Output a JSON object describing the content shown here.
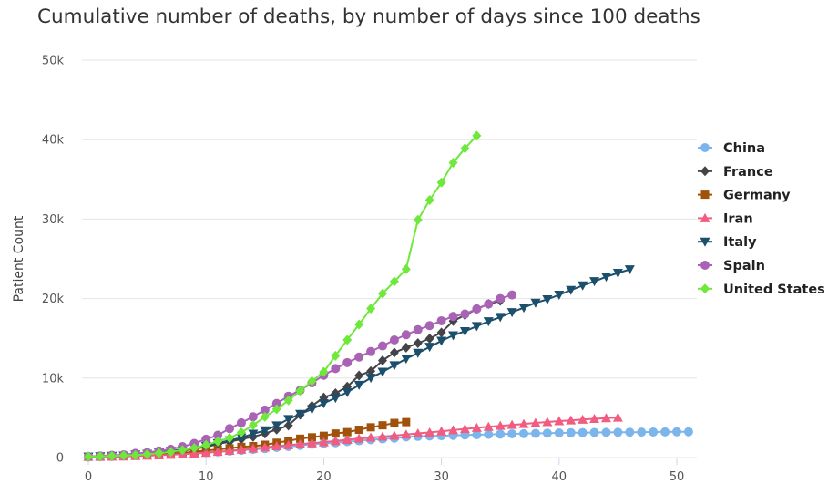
{
  "chart_data": {
    "type": "line",
    "title": "Cumulative number of deaths, by number of days since 100 deaths",
    "xlabel": "",
    "ylabel": "Patient Count",
    "xlim": [
      0,
      51
    ],
    "ylim": [
      0,
      50000
    ],
    "x_ticks": [
      0,
      10,
      20,
      30,
      40,
      50
    ],
    "y_ticks": [
      {
        "value": 0,
        "label": "0"
      },
      {
        "value": 10000,
        "label": "10k"
      },
      {
        "value": 20000,
        "label": "20k"
      },
      {
        "value": 30000,
        "label": "30k"
      },
      {
        "value": 40000,
        "label": "40k"
      },
      {
        "value": 50000,
        "label": "50k"
      }
    ],
    "grid": "horizontal",
    "legend": "right",
    "series": [
      {
        "name": "China",
        "color": "#7cb5ec",
        "marker": "circle",
        "values": [
          100,
          132,
          170,
          213,
          259,
          304,
          361,
          425,
          490,
          563,
          637,
          722,
          811,
          908,
          1016,
          1113,
          1259,
          1380,
          1523,
          1665,
          1770,
          1868,
          2004,
          2118,
          2236,
          2345,
          2442,
          2592,
          2663,
          2715,
          2744,
          2788,
          2835,
          2870,
          2912,
          2943,
          2981,
          3012,
          3042,
          3070,
          3097,
          3119,
          3136,
          3158,
          3169,
          3176,
          3189,
          3199,
          3213,
          3226,
          3237,
          3245
        ]
      },
      {
        "name": "France",
        "color": "#434348",
        "marker": "diamond",
        "values": [
          100,
          127,
          175,
          264,
          372,
          450,
          562,
          674,
          860,
          1100,
          1331,
          1696,
          1995,
          2314,
          2606,
          3024,
          3523,
          4032,
          5387,
          6507,
          7560,
          8078,
          8911,
          10328,
          10869,
          12210,
          13197,
          13832,
          14393,
          14967,
          15729,
          17167,
          17920,
          18681,
          19323,
          19718
        ]
      },
      {
        "name": "Germany",
        "color": "#a0520a",
        "marker": "square",
        "values": [
          100,
          126,
          149,
          198,
          253,
          325,
          389,
          455,
          583,
          732,
          872,
          1017,
          1158,
          1342,
          1434,
          1607,
          1861,
          2107,
          2373,
          2544,
          2736,
          3022,
          3194,
          3495,
          3804,
          4052,
          4352,
          4459
        ]
      },
      {
        "name": "Iran",
        "color": "#f15c80",
        "marker": "triangle",
        "values": [
          100,
          107,
          124,
          145,
          194,
          237,
          291,
          354,
          429,
          514,
          611,
          724,
          853,
          988,
          1135,
          1284,
          1433,
          1556,
          1685,
          1812,
          1934,
          2077,
          2234,
          2378,
          2517,
          2640,
          2757,
          2898,
          3036,
          3160,
          3294,
          3452,
          3603,
          3739,
          3872,
          3993,
          4110,
          4232,
          4357,
          4474,
          4585,
          4683,
          4777,
          4869,
          4958,
          5031
        ]
      },
      {
        "name": "Italy",
        "color": "#1b4f6b",
        "marker": "triangle-down",
        "values": [
          107,
          148,
          197,
          233,
          366,
          463,
          631,
          827,
          1016,
          1266,
          1441,
          1809,
          2158,
          2503,
          2978,
          3405,
          4032,
          4825,
          5476,
          6077,
          6820,
          7503,
          8215,
          9134,
          10023,
          10779,
          11591,
          12428,
          13155,
          13915,
          14681,
          15362,
          15887,
          16523,
          17127,
          17669,
          18279,
          18849,
          19468,
          19899,
          20465,
          21067,
          21645,
          22170,
          22745,
          23227,
          23660
        ]
      },
      {
        "name": "Spain",
        "color": "#a963b4",
        "marker": "circle",
        "values": [
          136,
          198,
          289,
          342,
          533,
          623,
          830,
          1043,
          1375,
          1772,
          2311,
          2808,
          3647,
          4365,
          5138,
          5982,
          6803,
          7716,
          8464,
          9387,
          10348,
          11198,
          11947,
          12641,
          13341,
          14045,
          14792,
          15447,
          16081,
          16606,
          17209,
          17756,
          18056,
          18708,
          19315,
          20002,
          20453
        ]
      },
      {
        "name": "United States",
        "color": "#6ee83a",
        "marker": "diamond",
        "values": [
          108,
          150,
          200,
          255,
          307,
          417,
          557,
          706,
          942,
          1209,
          1581,
          2026,
          2467,
          3170,
          4076,
          5117,
          6095,
          7195,
          8407,
          9619,
          10783,
          12794,
          14800,
          16740,
          18752,
          20630,
          22147,
          23700,
          29900,
          32400,
          34600,
          37100,
          38900,
          40500
        ]
      }
    ]
  }
}
